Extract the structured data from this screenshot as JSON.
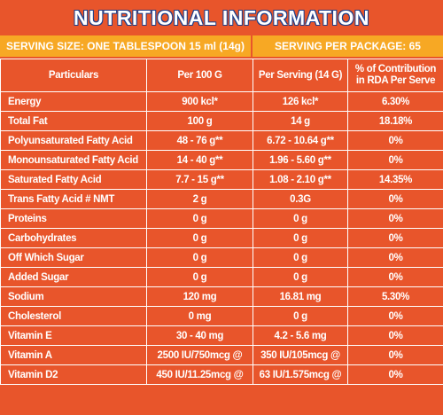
{
  "title": "NUTRITIONAL INFORMATION",
  "serving": {
    "size": "SERVING SIZE: ONE TABLESPOON 15 ml (14g)",
    "per_package": "SERVING PER PACKAGE: 65"
  },
  "table": {
    "header": [
      "Particulars",
      "Per 100 G",
      "Per Serving (14 G)",
      "% of Contribution in RDA Per Serve"
    ],
    "rows": [
      [
        "Energy",
        "900 kcl*",
        "126 kcl*",
        "6.30%"
      ],
      [
        "Total Fat",
        "100 g",
        "14 g",
        "18.18%"
      ],
      [
        "Polyunsaturated Fatty Acid",
        "48 - 76 g**",
        "6.72 - 10.64 g**",
        "0%"
      ],
      [
        "Monounsaturated Fatty Acid",
        "14 - 40 g**",
        "1.96 - 5.60 g**",
        "0%"
      ],
      [
        "Saturated Fatty Acid",
        "7.7 - 15 g**",
        "1.08 - 2.10 g**",
        "14.35%"
      ],
      [
        "Trans Fatty Acid # NMT",
        "2 g",
        "0.3G",
        "0%"
      ],
      [
        "Proteins",
        "0 g",
        "0 g",
        "0%"
      ],
      [
        "Carbohydrates",
        "0 g",
        "0 g",
        "0%"
      ],
      [
        "Off Which Sugar",
        "0 g",
        "0 g",
        "0%"
      ],
      [
        "Added Sugar",
        "0 g",
        "0 g",
        "0%"
      ],
      [
        "Sodium",
        "120 mg",
        "16.81 mg",
        "5.30%"
      ],
      [
        "Cholesterol",
        "0 mg",
        "0 g",
        "0%"
      ],
      [
        "Vitamin E",
        "30 - 40 mg",
        "4.2 - 5.6 mg",
        "0%"
      ],
      [
        "Vitamin A",
        "2500 IU/750mcg @",
        "350 IU/105mcg @",
        "0%"
      ],
      [
        "Vitamin D2",
        "450 IU/11.25mcg @",
        "63 IU/1.575mcg @",
        "0%"
      ]
    ]
  }
}
